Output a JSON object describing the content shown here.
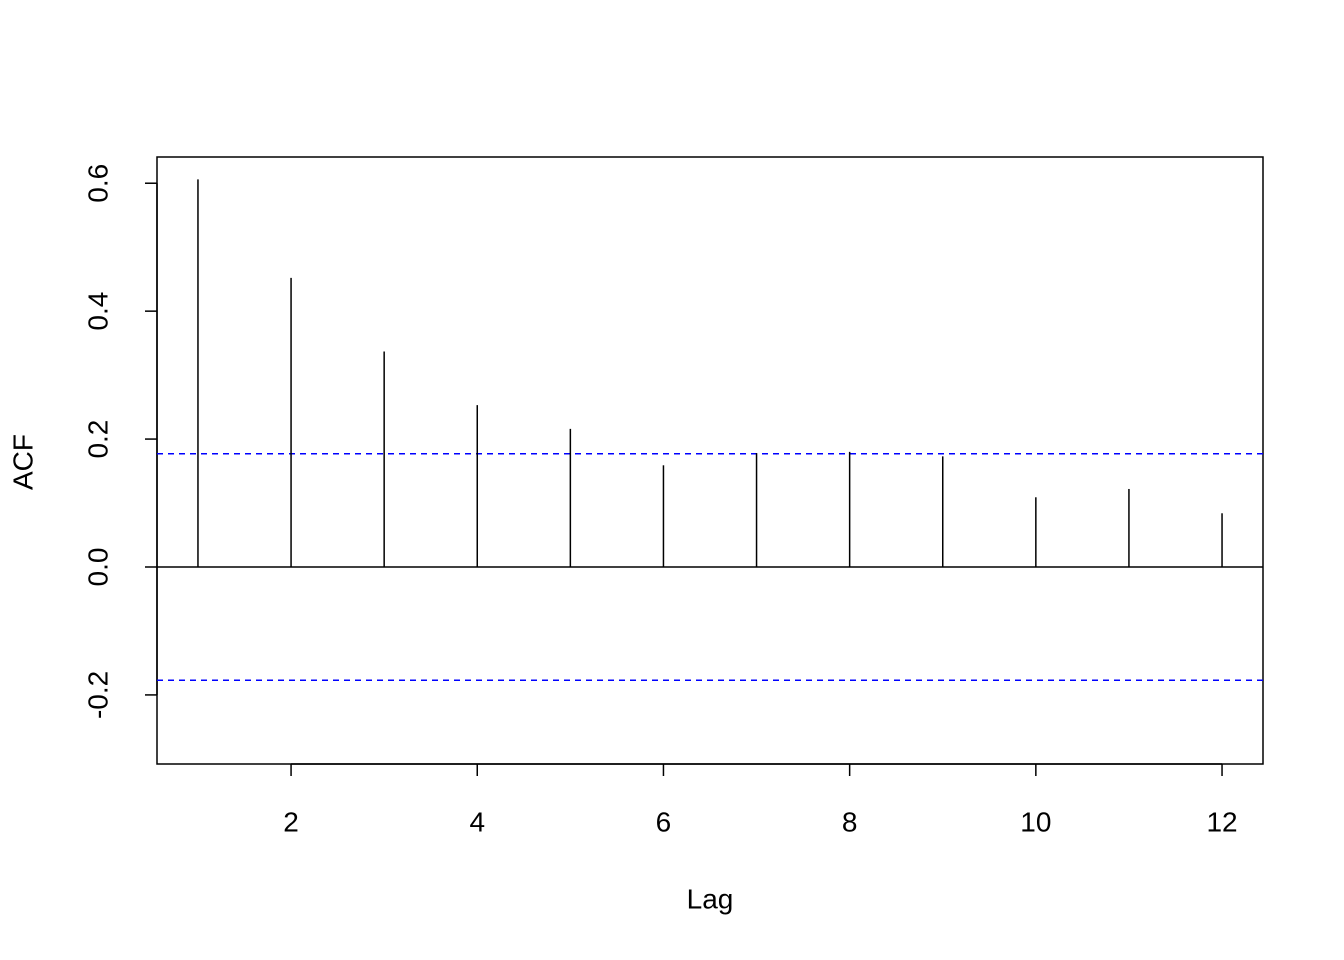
{
  "chart_data": {
    "type": "stem",
    "x_label": "Lag",
    "y_label": "ACF",
    "x": [
      1,
      2,
      3,
      4,
      5,
      6,
      7,
      8,
      9,
      10,
      11,
      12
    ],
    "values": [
      0.606,
      0.452,
      0.337,
      0.253,
      0.216,
      0.159,
      0.178,
      0.18,
      0.173,
      0.109,
      0.122,
      0.084
    ],
    "color": "#000000",
    "ci": 0.177,
    "ci_color": "#0000ff",
    "xlim": [
      0.56,
      12.44
    ],
    "ylim": [
      -0.308,
      0.641
    ],
    "xticks": [
      2,
      4,
      6,
      8,
      10,
      12
    ],
    "yticks": [
      -0.2,
      {
        "value": 0,
        "label": "0.0"
      },
      0.2,
      0.4,
      0.6
    ]
  }
}
